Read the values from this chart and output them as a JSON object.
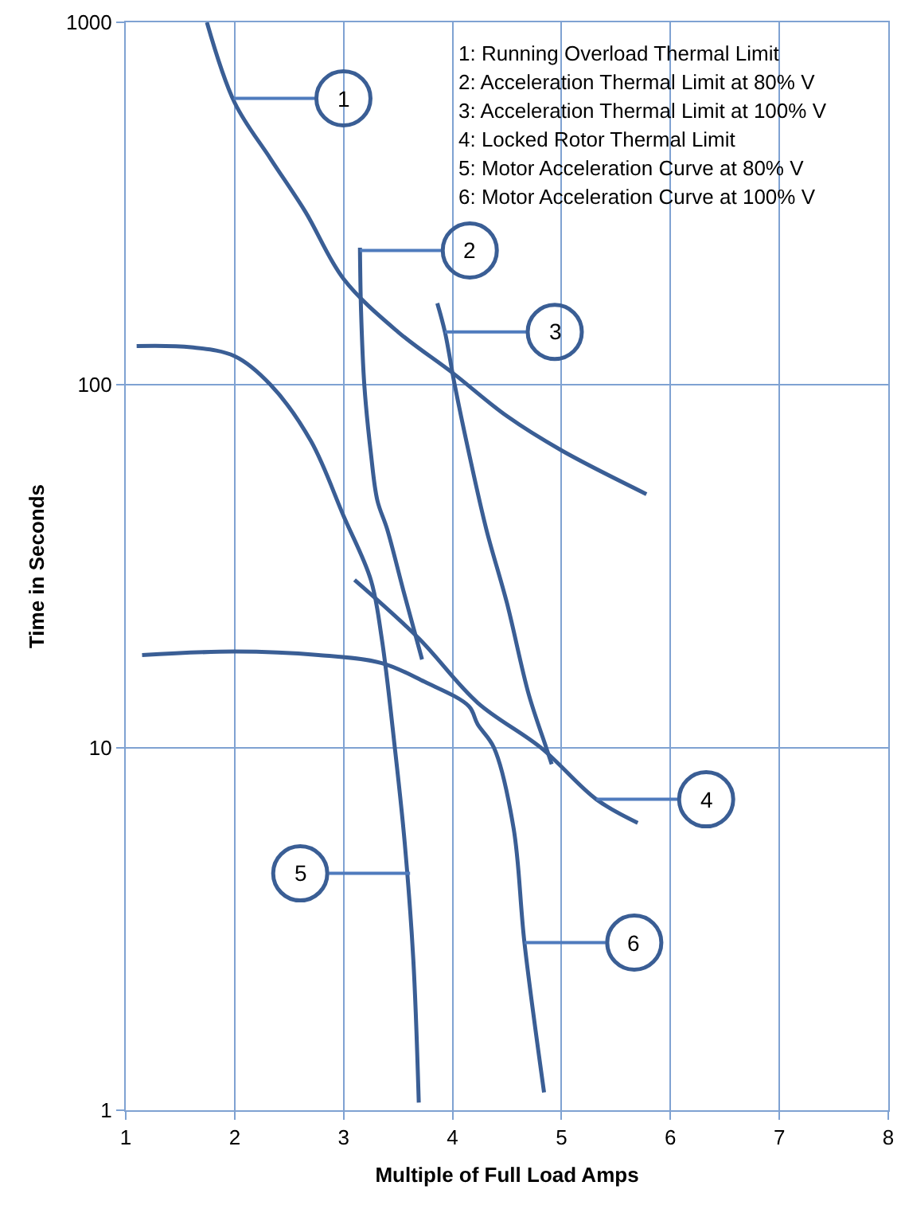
{
  "chart_data": {
    "type": "line",
    "xlabel": "Multiple of Full Load Amps",
    "ylabel": "Time in Seconds",
    "xlim": [
      1,
      8
    ],
    "xticks": [
      1,
      2,
      3,
      4,
      5,
      6,
      7,
      8
    ],
    "ylim": [
      1,
      1000
    ],
    "yticks": [
      1,
      10,
      100,
      1000
    ],
    "log": "y",
    "grid": true,
    "marker": "none",
    "line_style": "solid",
    "series": [
      {
        "color": "#3a5e95",
        "x": [
          1.745,
          2.0,
          2.33,
          2.65,
          3.0,
          3.5,
          4.0,
          4.5,
          5.0,
          5.78
        ],
        "values": [
          1000,
          600,
          420,
          300,
          196,
          140,
          108,
          82,
          66,
          50
        ]
      },
      {
        "color": "#3a5e95",
        "x": [
          3.15,
          3.16,
          3.19,
          3.25,
          3.31,
          3.4,
          3.55,
          3.72
        ],
        "values": [
          239,
          160,
          100,
          65,
          48,
          40,
          27,
          17.5
        ]
      },
      {
        "color": "#3a5e95",
        "x": [
          3.86,
          3.93,
          4.02,
          4.15,
          4.31,
          4.5,
          4.7,
          4.86,
          4.91
        ],
        "values": [
          168,
          140,
          100,
          65,
          40,
          25,
          14,
          10,
          9
        ]
      },
      {
        "color": "#3a5e95",
        "x": [
          3.1,
          3.69,
          4.23,
          4.81,
          5.32,
          5.7
        ],
        "values": [
          29,
          20,
          13.3,
          10,
          7.2,
          6.2
        ]
      },
      {
        "color": "#3a5e95",
        "x": [
          1.1,
          1.6,
          2.0,
          2.33,
          2.7,
          3.0,
          3.25,
          3.35,
          3.47,
          3.56,
          3.64,
          3.69
        ],
        "values": [
          128,
          127,
          120,
          100,
          70,
          43.5,
          29,
          20,
          10,
          5.5,
          2.6,
          1.05
        ]
      },
      {
        "color": "#3a5e95",
        "x": [
          1.15,
          2.0,
          2.77,
          3.35,
          3.74,
          4.15,
          4.23,
          4.38,
          4.56,
          4.66,
          4.84
        ],
        "values": [
          18,
          18.4,
          18,
          17.1,
          15.2,
          13,
          11.6,
          10,
          6,
          2.9,
          1.12
        ]
      }
    ],
    "annotations": [
      {
        "text": "1",
        "x": 1.99,
        "y": 617
      },
      {
        "text": "2",
        "x": 3.15,
        "y": 235
      },
      {
        "text": "3",
        "x": 3.93,
        "y": 140
      },
      {
        "text": "4",
        "x": 5.32,
        "y": 7.2
      },
      {
        "text": "5",
        "x": 3.61,
        "y": 4.5
      },
      {
        "text": "6",
        "x": 4.66,
        "y": 2.9
      },
      "1: Running Overload Thermal Limit",
      "2: Acceleration Thermal Limit at 80% V",
      "3: Acceleration Thermal Limit at 100% V",
      "4: Locked Rotor Thermal Limit",
      "5: Motor Acceleration Curve at 80% V",
      "6: Motor Acceleration Curve at 100% V"
    ]
  }
}
